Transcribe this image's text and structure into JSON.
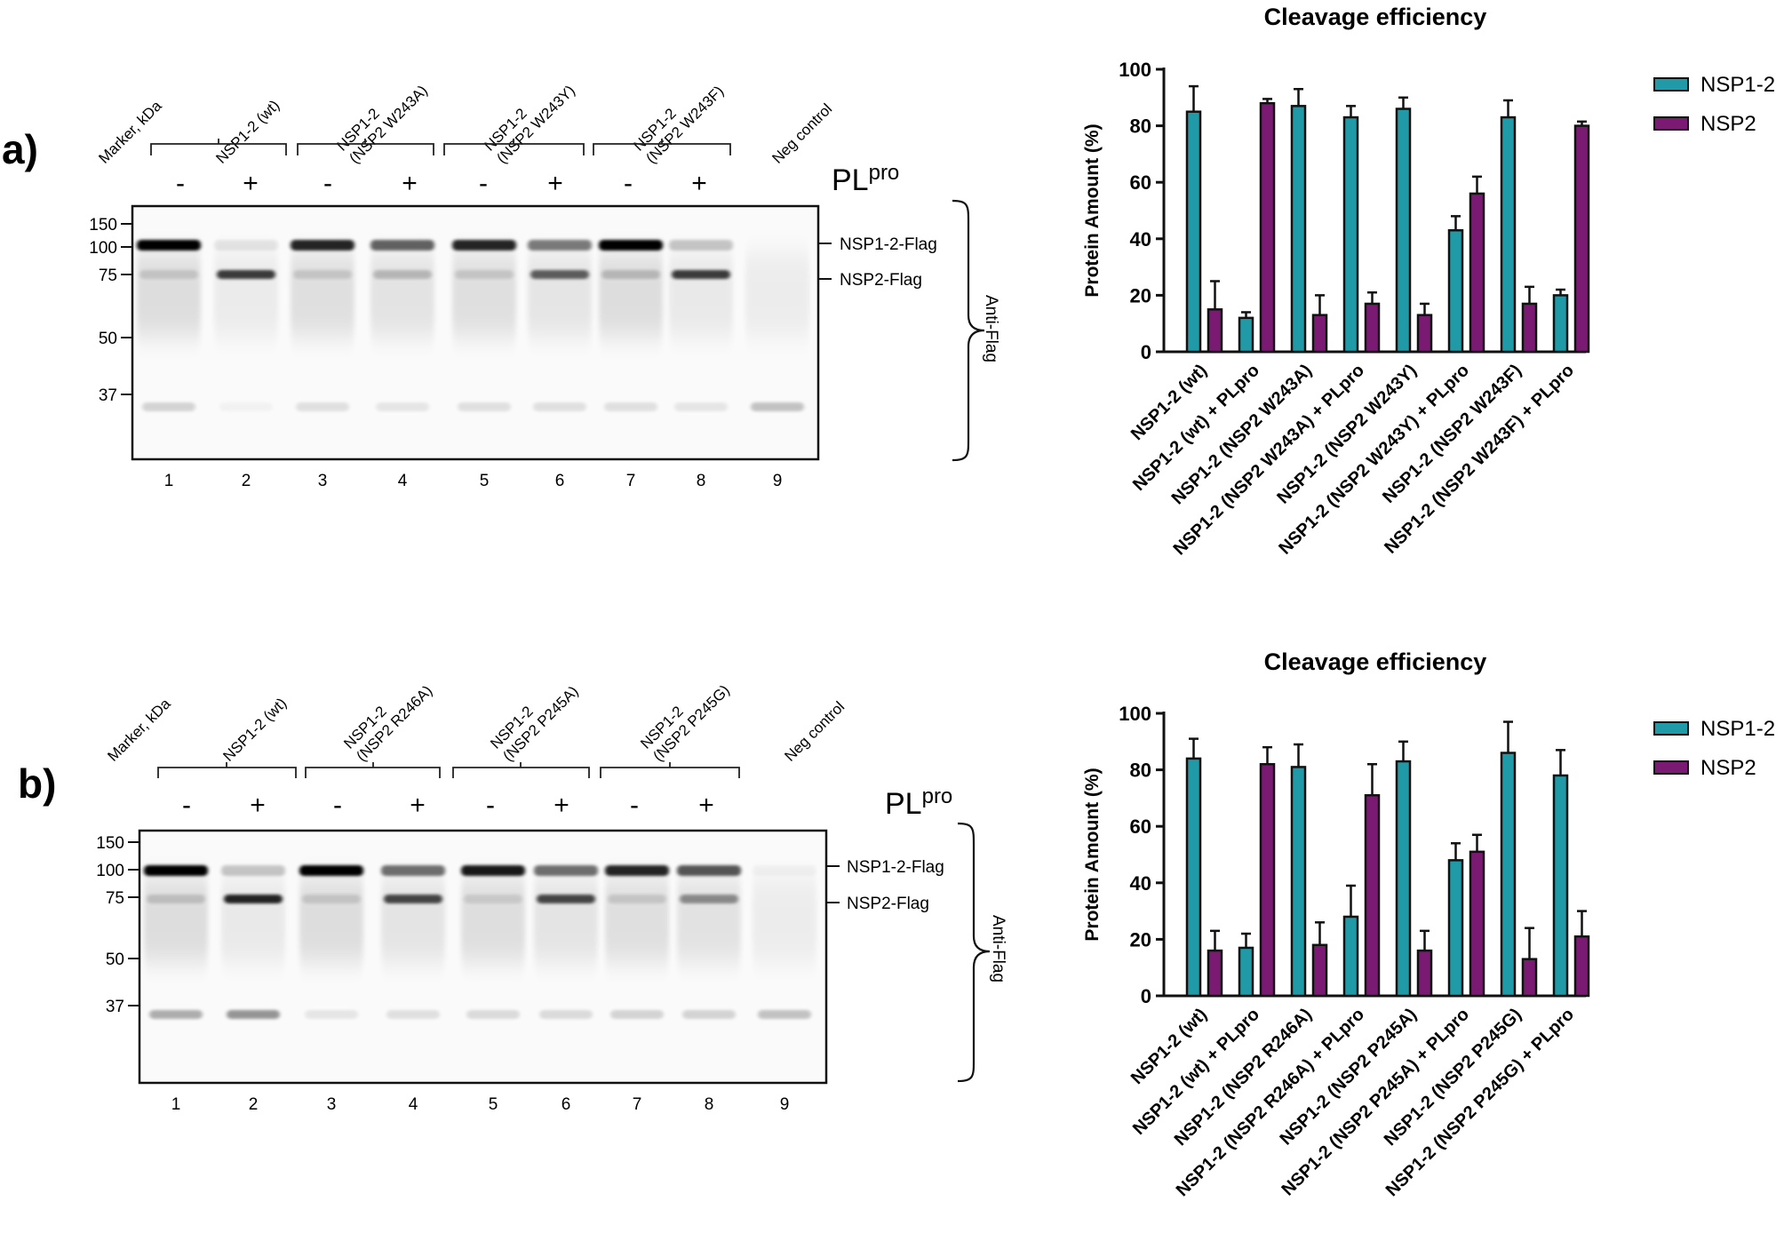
{
  "panels": [
    {
      "id": "a",
      "panel_label": "a)",
      "blot": {
        "lane_headers": [
          "Marker, kDa",
          "NSP1-2 (wt)",
          "NSP1-2\n(NSP2 W243A)",
          "NSP1-2\n(NSP2 W243Y)",
          "NSP1-2\n(NSP2 W243F)",
          "Neg control"
        ],
        "treatment_signs": [
          "-",
          "+",
          "-",
          "+",
          "-",
          "+",
          "-",
          "+"
        ],
        "enzyme_label": "PL",
        "enzyme_superscript": "pro",
        "marker_kda": [
          "150",
          "100",
          "75",
          "50",
          "37"
        ],
        "band_labels": [
          "NSP1-2-Flag",
          "NSP2-Flag"
        ],
        "antibody_label": "Anti-Flag",
        "lane_numbers": [
          "1",
          "2",
          "3",
          "4",
          "5",
          "6",
          "7",
          "8",
          "9"
        ],
        "band_intensity": {
          "nsp12": [
            1.0,
            0.08,
            0.85,
            0.6,
            0.85,
            0.5,
            1.0,
            0.2,
            0.0
          ],
          "nsp2": [
            0.12,
            0.75,
            0.12,
            0.2,
            0.12,
            0.6,
            0.18,
            0.75,
            0.0
          ],
          "low": [
            0.15,
            0.03,
            0.1,
            0.08,
            0.1,
            0.1,
            0.1,
            0.08,
            0.22
          ]
        }
      },
      "chart_data": {
        "type": "bar",
        "title": "Cleavage efficiency",
        "ylabel": "Protein Amount (%)",
        "ylim": [
          0,
          100
        ],
        "yticks": [
          "0",
          "20",
          "40",
          "60",
          "80",
          "100"
        ],
        "categories": [
          "NSP1-2 (wt)",
          "NSP1-2 (wt) + PLpro",
          "NSP1-2 (NSP2 W243A)",
          "NSP1-2 (NSP2 W243A) + PLpro",
          "NSP1-2 (NSP2 W243Y)",
          "NSP1-2 (NSP2 W243Y) + PLpro",
          "NSP1-2 (NSP2 W243F)",
          "NSP1-2 (NSP2 W243F) + PLpro"
        ],
        "legend_position": "right",
        "series": [
          {
            "name": "NSP1-2",
            "color": "#1f9aa6",
            "values": [
              85,
              12,
              87,
              83,
              86,
              43,
              83,
              20
            ],
            "errors": [
              9,
              2,
              6,
              4,
              4,
              5,
              6,
              2
            ]
          },
          {
            "name": "NSP2",
            "color": "#7b1a73",
            "values": [
              15,
              88,
              13,
              17,
              13,
              56,
              17,
              80
            ],
            "errors": [
              10,
              1.5,
              7,
              4,
              4,
              6,
              6,
              1.5
            ]
          }
        ]
      }
    },
    {
      "id": "b",
      "panel_label": "b)",
      "blot": {
        "lane_headers": [
          "Marker, kDa",
          "NSP1-2 (wt)",
          "NSP1-2\n(NSP2 R246A)",
          "NSP1-2\n(NSP2 P245A)",
          "NSP1-2\n(NSP2 P245G)",
          "Neg control"
        ],
        "treatment_signs": [
          "-",
          "+",
          "-",
          "+",
          "-",
          "+",
          "-",
          "+"
        ],
        "enzyme_label": "PL",
        "enzyme_superscript": "pro",
        "marker_kda": [
          "150",
          "100",
          "75",
          "50",
          "37"
        ],
        "band_labels": [
          "NSP1-2-Flag",
          "NSP2-Flag"
        ],
        "antibody_label": "Anti-Flag",
        "lane_numbers": [
          "1",
          "2",
          "3",
          "4",
          "5",
          "6",
          "7",
          "8",
          "9"
        ],
        "band_intensity": {
          "nsp12": [
            1.0,
            0.2,
            1.0,
            0.55,
            0.9,
            0.55,
            0.85,
            0.65,
            0.03
          ],
          "nsp2": [
            0.15,
            0.85,
            0.12,
            0.7,
            0.1,
            0.7,
            0.12,
            0.4,
            0.0
          ],
          "low": [
            0.3,
            0.4,
            0.08,
            0.1,
            0.12,
            0.12,
            0.15,
            0.15,
            0.22
          ]
        }
      },
      "chart_data": {
        "type": "bar",
        "title": "Cleavage efficiency",
        "ylabel": "Protein Amount (%)",
        "ylim": [
          0,
          100
        ],
        "yticks": [
          "0",
          "20",
          "40",
          "60",
          "80",
          "100"
        ],
        "categories": [
          "NSP1-2 (wt)",
          "NSP1-2 (wt) + PLpro",
          "NSP1-2 (NSP2 R246A)",
          "NSP1-2 (NSP2 R246A) + PLpro",
          "NSP1-2 (NSP2 P245A)",
          "NSP1-2 (NSP2 P245A) + PLpro",
          "NSP1-2 (NSP2 P245G)",
          "NSP1-2 (NSP2 P245G) + PLpro"
        ],
        "legend_position": "right",
        "series": [
          {
            "name": "NSP1-2",
            "color": "#1f9aa6",
            "values": [
              84,
              17,
              81,
              28,
              83,
              48,
              86,
              78
            ],
            "errors": [
              7,
              5,
              8,
              11,
              7,
              6,
              11,
              9
            ]
          },
          {
            "name": "NSP2",
            "color": "#7b1a73",
            "values": [
              16,
              82,
              18,
              71,
              16,
              51,
              13,
              21
            ],
            "errors": [
              7,
              6,
              8,
              11,
              7,
              6,
              11,
              9
            ]
          }
        ]
      }
    }
  ]
}
